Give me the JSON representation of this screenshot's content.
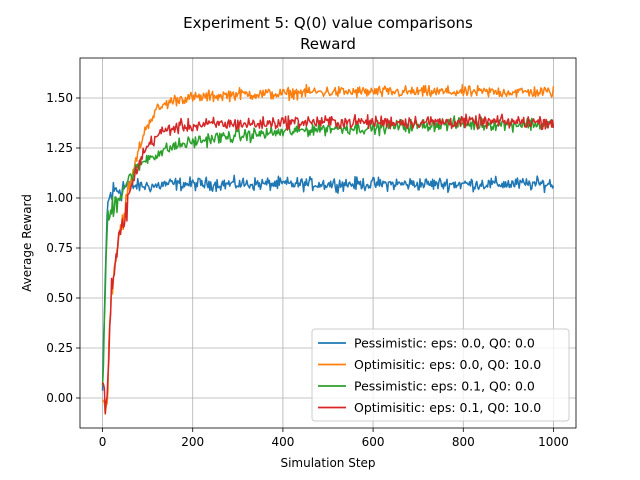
{
  "chart_data": {
    "type": "line",
    "title": "Experiment 5: Q(0) value comparisons",
    "subtitle": "Reward",
    "xlabel": "Simulation Step",
    "ylabel": "Average Reward",
    "xlim": [
      -50,
      1050
    ],
    "ylim": [
      -0.15,
      1.7
    ],
    "x_ticks": [
      0,
      200,
      400,
      600,
      800,
      1000
    ],
    "y_ticks": [
      0.0,
      0.25,
      0.5,
      0.75,
      1.0,
      1.25,
      1.5
    ],
    "x_tick_labels": [
      "0",
      "200",
      "400",
      "600",
      "800",
      "1000"
    ],
    "y_tick_labels": [
      "0.00",
      "0.25",
      "0.50",
      "0.75",
      "1.00",
      "1.25",
      "1.50"
    ],
    "grid": true,
    "legend_position": "lower-right",
    "x": [
      0,
      10,
      15,
      20,
      30,
      40,
      50,
      60,
      70,
      80,
      90,
      100,
      120,
      140,
      160,
      180,
      200,
      250,
      300,
      350,
      400,
      450,
      500,
      550,
      600,
      650,
      700,
      750,
      800,
      850,
      900,
      950,
      1000
    ],
    "series": [
      {
        "name": "Pessimistic: eps: 0.0, Q0: 0.0",
        "color": "#1f77b4",
        "noise": 0.028,
        "values": [
          0.03,
          0.93,
          1.0,
          1.02,
          1.04,
          1.05,
          1.06,
          1.06,
          1.06,
          1.06,
          1.06,
          1.06,
          1.06,
          1.07,
          1.07,
          1.07,
          1.07,
          1.07,
          1.07,
          1.07,
          1.07,
          1.07,
          1.07,
          1.07,
          1.07,
          1.07,
          1.07,
          1.07,
          1.07,
          1.07,
          1.07,
          1.07,
          1.07
        ]
      },
      {
        "name": "Optimisitic: eps: 0.0, Q0: 10.0",
        "color": "#ff7f0e",
        "noise": 0.025,
        "values": [
          -0.03,
          -0.03,
          0.3,
          0.55,
          0.72,
          0.85,
          0.95,
          1.05,
          1.15,
          1.24,
          1.31,
          1.37,
          1.44,
          1.47,
          1.49,
          1.5,
          1.5,
          1.51,
          1.52,
          1.52,
          1.52,
          1.53,
          1.53,
          1.53,
          1.53,
          1.53,
          1.53,
          1.53,
          1.53,
          1.53,
          1.53,
          1.53,
          1.53
        ]
      },
      {
        "name": "Pessimistic: eps: 0.1, Q0: 0.0",
        "color": "#2ca02c",
        "noise": 0.028,
        "values": [
          0.05,
          0.85,
          0.9,
          0.95,
          0.99,
          1.03,
          1.07,
          1.1,
          1.13,
          1.16,
          1.18,
          1.2,
          1.22,
          1.24,
          1.26,
          1.27,
          1.28,
          1.3,
          1.31,
          1.32,
          1.33,
          1.34,
          1.35,
          1.35,
          1.35,
          1.36,
          1.36,
          1.37,
          1.37,
          1.37,
          1.37,
          1.37,
          1.37
        ]
      },
      {
        "name": "Optimisitic: eps: 0.1, Q0: 10.0",
        "color": "#d62728",
        "noise": 0.028,
        "values": [
          0.03,
          0.0,
          0.25,
          0.55,
          0.7,
          0.82,
          0.92,
          1.02,
          1.1,
          1.17,
          1.22,
          1.26,
          1.31,
          1.34,
          1.35,
          1.36,
          1.36,
          1.37,
          1.37,
          1.37,
          1.38,
          1.38,
          1.38,
          1.38,
          1.38,
          1.38,
          1.38,
          1.38,
          1.38,
          1.38,
          1.38,
          1.38,
          1.38
        ]
      }
    ]
  }
}
